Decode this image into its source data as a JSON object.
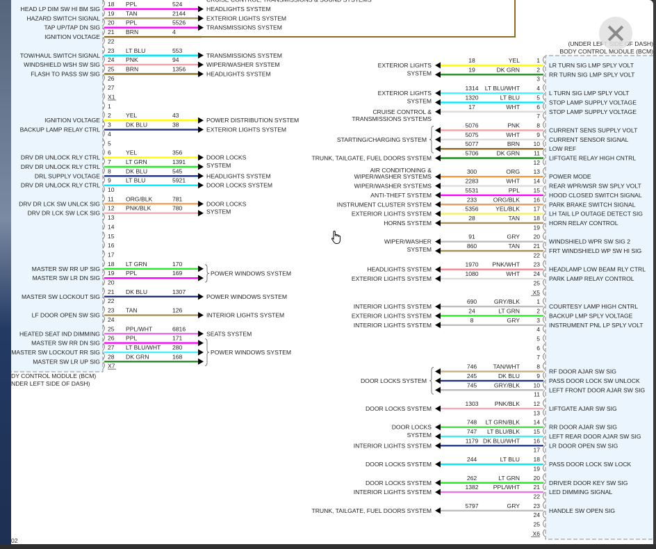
{
  "wire_colors": {
    "PPL": "#ff00ff",
    "TAN": "#a8905a",
    "BRN": "#8b6b1e",
    "LT BLU": "#00e8ff",
    "PNK": "#f4a0aa",
    "YEL": "#ffff00",
    "DK BLU": "#1c2f80",
    "LT GRN": "#22ee22",
    "ORG/BLK": "#e8a060",
    "PNK/BLK": "#f0aab4",
    "DK GRN": "#1e8c1e",
    "PPL/WHT": "#f06cf0",
    "LT BLU/WHT": "#40f4ff",
    "WHT": "#dcdcdc",
    "GRY": "#bdbdbd",
    "ORG": "#ff9a30",
    "GRY/BLK": "#bcbcbc",
    "YEL/BLK": "#f4f060",
    "TAN/WHT": "#c8ae7c",
    "DK BLU/WHT": "#243a8a",
    "LT GRN/BLK": "#44dd44",
    "LT BLU/BLK": "#44eef0",
    "PNK/WHT": "#f08890"
  },
  "left": {
    "module_label": [
      "DY CONTROL MODULE (BCM)",
      "NDER LEFT SIDE OF DASH)"
    ],
    "rows": [
      {
        "pin": "",
        "dest": {
          "lines": [
            "CRUISE CONTROL, TRANSMISSIONS & SOUND SYSTEMS"
          ],
          "span": 1
        }
      },
      {
        "pin": "18",
        "color": "PPL",
        "circuit": "524",
        "func": "HEAD LP DIM SW HI BM SIG",
        "dest": {
          "lines": [
            "HEADLIGHTS SYSTEM"
          ],
          "span": 1
        }
      },
      {
        "pin": "19",
        "color": "TAN",
        "circuit": "2144",
        "func": "HAZARD SWITCH SIGNAL",
        "dest": {
          "lines": [
            "EXTERIOR LIGHTS SYSTEM"
          ],
          "span": 1
        }
      },
      {
        "pin": "20",
        "color": "PPL",
        "circuit": "5526",
        "func": "TAP UP/TAP DN SIG",
        "dest": {
          "lines": [
            "TRANSMISSIONS SYSTEM"
          ],
          "span": 1
        }
      },
      {
        "pin": "21",
        "color": "BRN",
        "circuit": "4",
        "func": "IGNITION VOLTAGE"
      },
      {
        "pin": "22"
      },
      {
        "pin": "23",
        "color": "LT BLU",
        "circuit": "553",
        "func": "TOW/HAUL SWITCH SIGNAL",
        "dest": {
          "lines": [
            "TRANSMISSIONS SYSTEM"
          ],
          "span": 1
        }
      },
      {
        "pin": "24",
        "color": "PNK",
        "circuit": "94",
        "func": "WINDSHIELD WSH SW SIG",
        "dest": {
          "lines": [
            "WIPER/WASHER SYSTEM"
          ],
          "span": 1
        }
      },
      {
        "pin": "25",
        "color": "BRN",
        "circuit": "1356",
        "func": "FLASH TO PASS SW SIG",
        "dest": {
          "lines": [
            "HEADLIGHTS SYSTEM"
          ],
          "span": 1
        }
      },
      {
        "pin": "26"
      },
      {
        "pin": "27"
      },
      {
        "pin": "X1",
        "connector": true
      },
      {
        "pin": "1"
      },
      {
        "pin": "2",
        "color": "YEL",
        "circuit": "43",
        "func": "IGNITION VOLTAGE",
        "dest": {
          "lines": [
            "POWER DISTRIBUTION SYSTEM"
          ],
          "span": 1
        }
      },
      {
        "pin": "3",
        "color": "DK BLU",
        "circuit": "38",
        "func": "BACKUP LAMP RELAY CTRL",
        "dest": {
          "lines": [
            "EXTERIOR LIGHTS SYSTEM"
          ],
          "span": 1
        }
      },
      {
        "pin": "4"
      },
      {
        "pin": "5"
      },
      {
        "pin": "6",
        "color": "YEL",
        "circuit": "356",
        "func": "DRV DR UNLOCK RLY CTRL",
        "dest": {
          "lines": [
            "DOOR LOCKS",
            "SYSTEM"
          ],
          "span": 2
        }
      },
      {
        "pin": "7",
        "color": "LT GRN",
        "circuit": "1391",
        "func": "DRV DR UNLOCK RLY CTRL"
      },
      {
        "pin": "8",
        "color": "DK BLU",
        "circuit": "545",
        "func": "DRL SUPPLY VOLTAGE",
        "dest": {
          "lines": [
            "HEADLIGHTS SYSTEM"
          ],
          "span": 1
        }
      },
      {
        "pin": "9",
        "color": "LT BLU",
        "circuit": "5921",
        "func": "DRV DR UNLOCK RLY CTRL",
        "dest": {
          "lines": [
            "DOOR LOCKS SYSTEM"
          ],
          "span": 1
        }
      },
      {
        "pin": "10"
      },
      {
        "pin": "11",
        "color": "ORG/BLK",
        "circuit": "781",
        "func": "DRV DR LCK SW UNLCK SIG",
        "dest": {
          "lines": [
            "DOOR LOCKS",
            "SYSTEM"
          ],
          "span": 2
        }
      },
      {
        "pin": "12",
        "color": "PNK/BLK",
        "circuit": "780",
        "func": "DRV DR LCK SW LCK SIG"
      },
      {
        "pin": "13"
      },
      {
        "pin": "14"
      },
      {
        "pin": "15"
      },
      {
        "pin": "16"
      },
      {
        "pin": "17"
      },
      {
        "pin": "18",
        "color": "LT GRN",
        "circuit": "170",
        "func": "MASTER SW RR UP SIG",
        "dest": {
          "lines": [
            "POWER WINDOWS SYSTEM"
          ],
          "span": 2,
          "brace": true
        }
      },
      {
        "pin": "19",
        "color": "PPL",
        "circuit": "169",
        "func": "MASTER SW LR DN SIG"
      },
      {
        "pin": "20"
      },
      {
        "pin": "21",
        "color": "DK BLU",
        "circuit": "1307",
        "func": "MASTER SW LOCKOUT SIG",
        "dest": {
          "lines": [
            "POWER WINDOWS SYSTEM"
          ],
          "span": 1
        }
      },
      {
        "pin": "22"
      },
      {
        "pin": "23",
        "color": "TAN",
        "circuit": "126",
        "func": "LF DOOR OPEN SW SIG",
        "dest": {
          "lines": [
            "INTERIOR LIGHTS SYSTEM"
          ],
          "span": 1
        }
      },
      {
        "pin": "24"
      },
      {
        "pin": "25",
        "color": "PPL/WHT",
        "circuit": "6816",
        "func": "HEATED SEAT IND DIMMING",
        "dest": {
          "lines": [
            "SEATS SYSTEM"
          ],
          "span": 1
        }
      },
      {
        "pin": "26",
        "color": "PPL",
        "circuit": "171",
        "func": "MASTER SW RR DN SIG",
        "dest": {
          "lines": [
            "POWER WINDOWS SYSTEM"
          ],
          "span": 3,
          "brace": true
        }
      },
      {
        "pin": "27",
        "color": "LT BLU/WHT",
        "circuit": "280",
        "func": "MASTER SW LOCKOUT RR SIG"
      },
      {
        "pin": "28",
        "color": "DK GRN",
        "circuit": "168",
        "func": "MASTER SW LR UP SIG"
      },
      {
        "pin": "X7",
        "connector": true
      }
    ]
  },
  "right": {
    "module_label": [
      "(UNDER LEFT SIDE OF DASH)",
      "BODY CONTROL MODULE (BCM)"
    ],
    "rows": [
      {
        "pin": "1",
        "color": "YEL",
        "circuit": "18",
        "func": "LR TURN SIG LMP SPLY VOLT",
        "dest": {
          "lines": [
            "EXTERIOR LIGHTS",
            "SYSTEM"
          ],
          "span": 2
        }
      },
      {
        "pin": "2",
        "color": "DK GRN",
        "circuit": "19",
        "func": "RR TURN SIG LMP SPLY VOLT"
      },
      {
        "pin": "3"
      },
      {
        "pin": "4",
        "color": "LT BLU/WHT",
        "circuit": "1314",
        "func": "L TURN SIG LMP SPLY VOLT",
        "dest": {
          "lines": [
            "EXTERIOR LIGHTS",
            "SYSTEM"
          ],
          "span": 2
        }
      },
      {
        "pin": "5",
        "color": "LT BLU",
        "circuit": "1320",
        "func": "STOP LAMP SUPPLY VOLTAGE"
      },
      {
        "pin": "6",
        "color": "WHT",
        "circuit": "17",
        "func": "STOP LAMP SUPPLY VOLTAGE",
        "dest": {
          "lines": [
            "CRUISE CONTROL &",
            "TRANSMISSIONS SYSTEMS"
          ],
          "span": 1
        }
      },
      {
        "pin": "7"
      },
      {
        "pin": "8",
        "color": "PNK",
        "circuit": "5076",
        "func": "CURRENT SENS SUPPLY VOLT",
        "dest": {
          "lines": [
            "STARTING/CHARGING SYSTEM"
          ],
          "span": 3,
          "brace": true
        }
      },
      {
        "pin": "9",
        "color": "WHT",
        "circuit": "5075",
        "func": "CURRENT SENSOR SIGNAL"
      },
      {
        "pin": "10",
        "color": "BRN",
        "circuit": "5077",
        "func": "LOW REF"
      },
      {
        "pin": "11",
        "color": "DK GRN",
        "circuit": "5706",
        "func": "LIFTGATE RELAY HIGH CNTRL",
        "dest": {
          "lines": [
            "TRUNK, TAILGATE, FUEL DOORS SYSTEM"
          ],
          "span": 1
        }
      },
      {
        "pin": "12"
      },
      {
        "pin": "13",
        "color": "ORG",
        "circuit": "300",
        "func": "POWER MODE",
        "dest": {
          "lines": [
            "AIR CONDITIONING &",
            "WIPER/WASHER SYSTEMS"
          ],
          "span": 1
        }
      },
      {
        "pin": "14",
        "color": "WHT",
        "circuit": "2283",
        "func": "REAR WPR/WSR SW SPLY VOLT",
        "dest": {
          "lines": [
            "WIPER/WASHER SYSTEMS"
          ],
          "span": 1
        }
      },
      {
        "pin": "15",
        "color": "PPL",
        "circuit": "5531",
        "func": "HOOD CLOSED SWITCH SIGNAL",
        "dest": {
          "lines": [
            "ANTI-THEFT SYSTEM"
          ],
          "span": 1
        }
      },
      {
        "pin": "16",
        "color": "ORG/BLK",
        "circuit": "233",
        "func": "PARK BRAKE SWITCH SIGNAL",
        "dest": {
          "lines": [
            "INSTRUMENT CLUSTER SYSTEM"
          ],
          "span": 1
        }
      },
      {
        "pin": "17",
        "color": "YEL/BLK",
        "circuit": "5356",
        "func": "LH TAIL LP OUTAGE DETECT SIG",
        "dest": {
          "lines": [
            "EXTERIOR LIGHTS SYSTEM"
          ],
          "span": 1
        }
      },
      {
        "pin": "18",
        "color": "TAN",
        "circuit": "28",
        "func": "HORN RELAY CONTROL",
        "dest": {
          "lines": [
            "HORNS SYSTEM"
          ],
          "span": 1
        }
      },
      {
        "pin": "19"
      },
      {
        "pin": "20",
        "color": "GRY",
        "circuit": "91",
        "func": "WINDSHIELD WPR SW SIG 2",
        "dest": {
          "lines": [
            "WIPER/WASHER",
            "SYSTEM"
          ],
          "span": 2
        }
      },
      {
        "pin": "21",
        "color": "TAN",
        "circuit": "860",
        "func": "FRT WINDSHIELD WP SW HI SIG"
      },
      {
        "pin": "22"
      },
      {
        "pin": "23",
        "color": "PNK/WHT",
        "circuit": "1970",
        "func": "HEADLAMP LOW BEAM RLY CTRL",
        "dest": {
          "lines": [
            "HEADLIGHTS SYSTEM"
          ],
          "span": 1
        }
      },
      {
        "pin": "24",
        "color": "WHT",
        "circuit": "1080",
        "func": "PARK LAMP RELAY CONTROL",
        "dest": {
          "lines": [
            "EXTERIOR LIGHTS SYSTEM"
          ],
          "span": 1
        }
      },
      {
        "pin": "25"
      },
      {
        "pin": "X5",
        "connector": true
      },
      {
        "pin": "1",
        "color": "GRY/BLK",
        "circuit": "690",
        "func": "COURTESY LAMP HIGH CNTRL",
        "dest": {
          "lines": [
            "INTERIOR LIGHTS SYSTEM"
          ],
          "span": 1
        }
      },
      {
        "pin": "2",
        "color": "LT GRN",
        "circuit": "24",
        "func": "BACKUP LMP SPLY VOLTAGE",
        "dest": {
          "lines": [
            "EXTERIOR LIGHTS SYSTEM"
          ],
          "span": 1
        }
      },
      {
        "pin": "3",
        "color": "GRY",
        "circuit": "8",
        "func": "INSTRUMENT PNL LP SPLY VOLT",
        "dest": {
          "lines": [
            "INTERIOR LIGHTS SYSTEM"
          ],
          "span": 1
        }
      },
      {
        "pin": "4"
      },
      {
        "pin": "5"
      },
      {
        "pin": "6"
      },
      {
        "pin": "7"
      },
      {
        "pin": "8",
        "color": "TAN/WHT",
        "circuit": "746",
        "func": "RF DOOR AJAR SW SIG",
        "dest": {
          "lines": [
            "DOOR LOCKS SYSTEM"
          ],
          "span": 3,
          "brace": true
        }
      },
      {
        "pin": "9",
        "color": "DK BLU",
        "circuit": "245",
        "func": "PASS DOOR LOCK SW UNLOCK"
      },
      {
        "pin": "10",
        "color": "GRY/BLK",
        "circuit": "745",
        "func": "LEFT FRONT DOOR AJAR SW SIG"
      },
      {
        "pin": "11"
      },
      {
        "pin": "12",
        "color": "PNK/BLK",
        "circuit": "1303",
        "func": "LIFTGATE AJAR SW SIG",
        "dest": {
          "lines": [
            "DOOR LOCKS SYSTEM"
          ],
          "span": 1
        }
      },
      {
        "pin": "13"
      },
      {
        "pin": "14",
        "color": "LT GRN/BLK",
        "circuit": "748",
        "func": "RR DOOR AJAR SW SIG",
        "dest": {
          "lines": [
            "DOOR LOCKS",
            "SYSTEM"
          ],
          "span": 2
        }
      },
      {
        "pin": "15",
        "color": "LT BLU/BLK",
        "circuit": "747",
        "func": "LEFT REAR DOOR AJAR SW SIG"
      },
      {
        "pin": "16",
        "color": "DK BLU/WHT",
        "circuit": "1179",
        "func": "LR DOOR OPEN SW SIG",
        "dest": {
          "lines": [
            "INTERIOR LIGHTS SYSTEM"
          ],
          "span": 1
        }
      },
      {
        "pin": "17"
      },
      {
        "pin": "18",
        "color": "LT BLU",
        "circuit": "244",
        "func": "PASS DOOR LOCK SW LOCK",
        "dest": {
          "lines": [
            "DOOR LOCKS SYSTEM"
          ],
          "span": 1
        }
      },
      {
        "pin": "19"
      },
      {
        "pin": "20",
        "color": "LT GRN",
        "circuit": "262",
        "func": "DRIVER DOOR KEY SW SIG",
        "dest": {
          "lines": [
            "DOOR LOCKS SYSTEM"
          ],
          "span": 1
        }
      },
      {
        "pin": "21",
        "color": "PPL/WHT",
        "circuit": "1382",
        "func": "LED DIMMING SIGNAL",
        "dest": {
          "lines": [
            "INTERIOR LIGHTS SYSTEM"
          ],
          "span": 1
        }
      },
      {
        "pin": "22"
      },
      {
        "pin": "23",
        "color": "GRY",
        "circuit": "5797",
        "func": "HANDLE SW OPEN SIG",
        "dest": {
          "lines": [
            "TRUNK, TAILGATE, FUEL DOORS SYSTEM"
          ],
          "span": 1
        }
      },
      {
        "pin": "24"
      },
      {
        "pin": "25"
      },
      {
        "pin": "X6",
        "connector": true
      }
    ]
  },
  "page_number": "02",
  "close_icon": "close-x-icon",
  "cursor_icon": "hand-pointer-icon"
}
